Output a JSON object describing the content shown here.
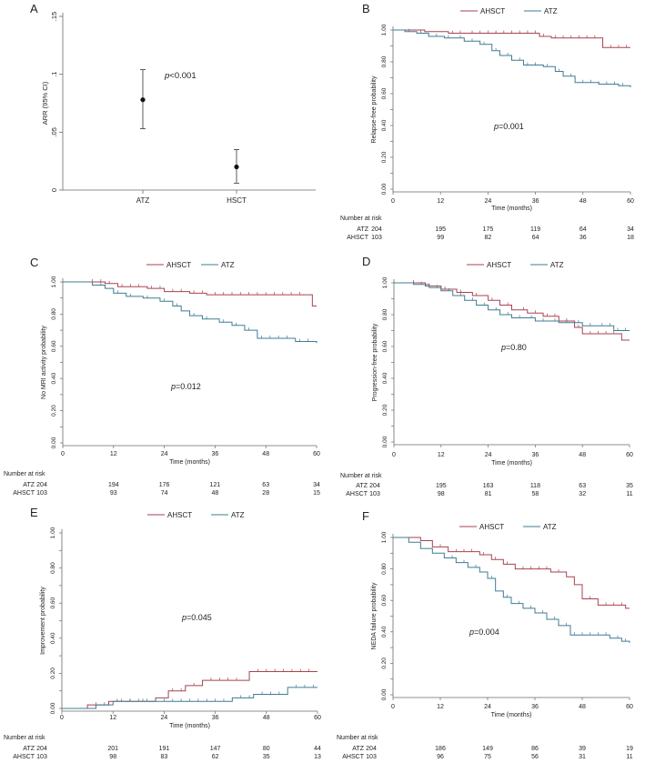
{
  "colors": {
    "ahsct": "#a84250",
    "atz": "#3f7c93",
    "axis": "#6a6a6a",
    "text": "#222222"
  },
  "chart_data": [
    {
      "letter": "A",
      "type": "scatter",
      "ylabel": "ARR (95% CI)",
      "ylim": [
        0,
        0.15
      ],
      "yticks": [
        0,
        0.05,
        0.1,
        0.15
      ],
      "yticklabels": [
        "0",
        ".05",
        ".1",
        ".15"
      ],
      "categories": [
        "ATZ",
        "HSCT"
      ],
      "values": [
        0.078,
        0.02
      ],
      "ci_low": [
        0.053,
        0.006
      ],
      "ci_high": [
        0.104,
        0.035
      ],
      "pvalue": "<0.001"
    },
    {
      "letter": "B",
      "type": "line",
      "ylabel": "Relapse-free probability",
      "xlabel": "Time (months)",
      "pvalue": "=0.001",
      "risk_title": "Number at risk",
      "risk": [
        {
          "label": "ATZ",
          "n0": "204",
          "counts": [
            "195",
            "175",
            "119",
            "64",
            "34"
          ]
        },
        {
          "label": "AHSCT",
          "n0": "103",
          "counts": [
            "99",
            "82",
            "64",
            "36",
            "18"
          ]
        }
      ],
      "series": [
        {
          "name": "AHSCT",
          "color": "ahsct",
          "steps": [
            [
              0,
              1
            ],
            [
              8,
              0.99
            ],
            [
              14,
              0.98
            ],
            [
              37,
              0.96
            ],
            [
              40,
              0.95
            ],
            [
              53,
              0.89
            ],
            [
              60,
              0.89
            ]
          ],
          "censor": [
            15,
            17,
            20,
            22,
            24,
            26,
            28,
            30,
            32,
            34,
            36,
            38,
            41,
            43,
            45,
            47,
            49,
            51,
            55,
            57,
            59
          ]
        },
        {
          "name": "ATZ",
          "color": "atz",
          "steps": [
            [
              0,
              1
            ],
            [
              3,
              0.99
            ],
            [
              6,
              0.98
            ],
            [
              9,
              0.96
            ],
            [
              13,
              0.95
            ],
            [
              18,
              0.93
            ],
            [
              22,
              0.91
            ],
            [
              25,
              0.87
            ],
            [
              27,
              0.84
            ],
            [
              30,
              0.81
            ],
            [
              33,
              0.78
            ],
            [
              38,
              0.77
            ],
            [
              41,
              0.74
            ],
            [
              43,
              0.71
            ],
            [
              46,
              0.67
            ],
            [
              52,
              0.66
            ],
            [
              57,
              0.65
            ],
            [
              60,
              0.64
            ]
          ],
          "censor": [
            4,
            7,
            11,
            14,
            17,
            20,
            23,
            26,
            29,
            32,
            34,
            36,
            39,
            42,
            45,
            48,
            50,
            52,
            54,
            56,
            58
          ]
        }
      ]
    },
    {
      "letter": "C",
      "type": "line",
      "ylabel": "No MRI activity probability",
      "xlabel": "Time (months)",
      "pvalue": "=0.012",
      "risk_title": "Number at risk",
      "risk": [
        {
          "label": "ATZ",
          "n0": "204",
          "counts": [
            "194",
            "176",
            "121",
            "63",
            "34"
          ]
        },
        {
          "label": "AHSCT",
          "n0": "103",
          "counts": [
            "93",
            "74",
            "48",
            "28",
            "15"
          ]
        }
      ],
      "series": [
        {
          "name": "AHSCT",
          "color": "ahsct",
          "steps": [
            [
              0,
              1
            ],
            [
              10,
              0.99
            ],
            [
              13,
              0.97
            ],
            [
              20,
              0.96
            ],
            [
              24,
              0.94
            ],
            [
              30,
              0.93
            ],
            [
              34,
              0.92
            ],
            [
              59,
              0.85
            ],
            [
              60,
              0.85
            ]
          ],
          "censor": [
            7,
            9,
            11,
            14,
            16,
            18,
            21,
            23,
            26,
            28,
            31,
            33,
            36,
            38,
            40,
            42,
            44,
            46,
            48,
            50,
            52,
            54,
            56
          ]
        },
        {
          "name": "ATZ",
          "color": "atz",
          "steps": [
            [
              0,
              1
            ],
            [
              7,
              0.98
            ],
            [
              10,
              0.96
            ],
            [
              12,
              0.93
            ],
            [
              15,
              0.91
            ],
            [
              19,
              0.9
            ],
            [
              23,
              0.88
            ],
            [
              26,
              0.85
            ],
            [
              28,
              0.82
            ],
            [
              30,
              0.79
            ],
            [
              33,
              0.77
            ],
            [
              37,
              0.75
            ],
            [
              40,
              0.73
            ],
            [
              43,
              0.7
            ],
            [
              46,
              0.65
            ],
            [
              55,
              0.63
            ],
            [
              60,
              0.62
            ]
          ],
          "censor": [
            9,
            13,
            16,
            20,
            24,
            27,
            31,
            34,
            38,
            41,
            44,
            47,
            49,
            51,
            53,
            56,
            58
          ]
        }
      ]
    },
    {
      "letter": "D",
      "type": "line",
      "ylabel": "Progression-free probability",
      "xlabel": "Time (months)",
      "pvalue": "=0.80",
      "risk_title": "Number at risk",
      "risk": [
        {
          "label": "ATZ",
          "n0": "204",
          "counts": [
            "195",
            "163",
            "118",
            "63",
            "35"
          ]
        },
        {
          "label": "AHSCT",
          "n0": "103",
          "counts": [
            "98",
            "81",
            "58",
            "32",
            "11"
          ]
        }
      ],
      "series": [
        {
          "name": "AHSCT",
          "color": "ahsct",
          "steps": [
            [
              0,
              1
            ],
            [
              8,
              0.98
            ],
            [
              12,
              0.96
            ],
            [
              16,
              0.94
            ],
            [
              20,
              0.92
            ],
            [
              24,
              0.89
            ],
            [
              27,
              0.86
            ],
            [
              30,
              0.83
            ],
            [
              34,
              0.81
            ],
            [
              38,
              0.79
            ],
            [
              42,
              0.76
            ],
            [
              46,
              0.72
            ],
            [
              48,
              0.68
            ],
            [
              58,
              0.64
            ],
            [
              60,
              0.64
            ]
          ],
          "censor": [
            5,
            9,
            13,
            17,
            21,
            25,
            29,
            33,
            36,
            39,
            41,
            44,
            47,
            50,
            52,
            54,
            56
          ]
        },
        {
          "name": "ATZ",
          "color": "atz",
          "steps": [
            [
              0,
              1
            ],
            [
              5,
              0.99
            ],
            [
              9,
              0.97
            ],
            [
              12,
              0.95
            ],
            [
              15,
              0.92
            ],
            [
              18,
              0.89
            ],
            [
              21,
              0.86
            ],
            [
              24,
              0.83
            ],
            [
              27,
              0.8
            ],
            [
              30,
              0.78
            ],
            [
              36,
              0.76
            ],
            [
              42,
              0.75
            ],
            [
              48,
              0.73
            ],
            [
              56,
              0.7
            ],
            [
              60,
              0.7
            ]
          ],
          "censor": [
            7,
            11,
            14,
            17,
            20,
            23,
            26,
            29,
            32,
            35,
            38,
            41,
            44,
            47,
            50,
            53,
            55,
            57,
            59
          ]
        }
      ]
    },
    {
      "letter": "E",
      "type": "line",
      "ylabel": "Improvement probability",
      "xlabel": "Time (months)",
      "pvalue": "=0.045",
      "risk_title": "Number at risk",
      "risk": [
        {
          "label": "ATZ",
          "n0": "204",
          "counts": [
            "201",
            "191",
            "147",
            "80",
            "44"
          ]
        },
        {
          "label": "AHSCT",
          "n0": "103",
          "counts": [
            "98",
            "83",
            "62",
            "35",
            "13"
          ]
        }
      ],
      "series": [
        {
          "name": "AHSCT",
          "color": "ahsct",
          "steps": [
            [
              0,
              0
            ],
            [
              6,
              0.02
            ],
            [
              11,
              0.04
            ],
            [
              22,
              0.06
            ],
            [
              25,
              0.1
            ],
            [
              29,
              0.13
            ],
            [
              33,
              0.16
            ],
            [
              44,
              0.21
            ],
            [
              60,
              0.21
            ]
          ],
          "censor": [
            8,
            13,
            16,
            19,
            26,
            28,
            31,
            35,
            37,
            39,
            41,
            46,
            48,
            50,
            52,
            54,
            56,
            58
          ]
        },
        {
          "name": "ATZ",
          "color": "atz",
          "steps": [
            [
              0,
              0
            ],
            [
              8,
              0.02
            ],
            [
              12,
              0.04
            ],
            [
              40,
              0.06
            ],
            [
              45,
              0.08
            ],
            [
              53,
              0.12
            ],
            [
              60,
              0.12
            ]
          ],
          "censor": [
            10,
            14,
            16,
            18,
            20,
            22,
            24,
            26,
            28,
            30,
            32,
            34,
            36,
            38,
            42,
            44,
            47,
            49,
            51,
            55,
            57,
            59
          ]
        }
      ]
    },
    {
      "letter": "F",
      "type": "line",
      "ylabel": "NEDA failure probability",
      "xlabel": "Time (months)",
      "pvalue": "=0.004",
      "risk_title": "Number at risk",
      "risk": [
        {
          "label": "ATZ",
          "n0": "204",
          "counts": [
            "186",
            "149",
            "86",
            "39",
            "19"
          ]
        },
        {
          "label": "AHSCT",
          "n0": "103",
          "counts": [
            "96",
            "75",
            "56",
            "31",
            "11"
          ]
        }
      ],
      "series": [
        {
          "name": "AHSCT",
          "color": "ahsct",
          "steps": [
            [
              0,
              1
            ],
            [
              7,
              0.98
            ],
            [
              10,
              0.94
            ],
            [
              14,
              0.91
            ],
            [
              22,
              0.89
            ],
            [
              25,
              0.86
            ],
            [
              28,
              0.83
            ],
            [
              31,
              0.8
            ],
            [
              40,
              0.78
            ],
            [
              44,
              0.75
            ],
            [
              46,
              0.7
            ],
            [
              48,
              0.61
            ],
            [
              52,
              0.57
            ],
            [
              59,
              0.55
            ],
            [
              60,
              0.55
            ]
          ],
          "censor": [
            12,
            16,
            18,
            20,
            23,
            26,
            29,
            33,
            35,
            37,
            39,
            42,
            50,
            54,
            56,
            58
          ]
        },
        {
          "name": "ATZ",
          "color": "atz",
          "steps": [
            [
              0,
              1
            ],
            [
              4,
              0.97
            ],
            [
              7,
              0.93
            ],
            [
              10,
              0.9
            ],
            [
              13,
              0.87
            ],
            [
              16,
              0.84
            ],
            [
              19,
              0.81
            ],
            [
              22,
              0.78
            ],
            [
              24,
              0.74
            ],
            [
              26,
              0.66
            ],
            [
              28,
              0.62
            ],
            [
              30,
              0.58
            ],
            [
              33,
              0.55
            ],
            [
              36,
              0.52
            ],
            [
              39,
              0.48
            ],
            [
              42,
              0.44
            ],
            [
              45,
              0.38
            ],
            [
              55,
              0.36
            ],
            [
              58,
              0.34
            ],
            [
              60,
              0.33
            ]
          ],
          "censor": [
            15,
            18,
            21,
            25,
            29,
            32,
            35,
            38,
            41,
            44,
            46,
            48,
            50,
            52,
            54,
            57,
            59
          ]
        }
      ]
    }
  ]
}
